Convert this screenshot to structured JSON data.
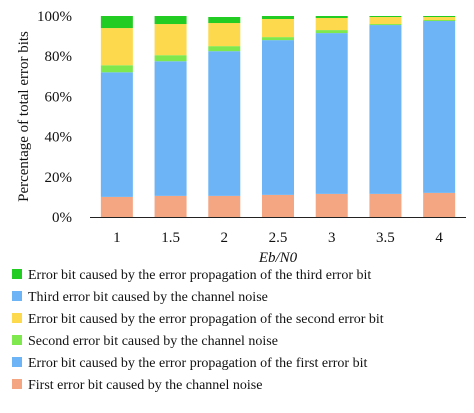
{
  "chart_data": {
    "type": "bar",
    "stacked": true,
    "title": "",
    "xlabel": "Eb/N0",
    "ylabel": "Percentage of total error bits",
    "categories": [
      "1",
      "1.5",
      "2",
      "2.5",
      "3",
      "3.5",
      "4"
    ],
    "ylim": [
      0,
      100
    ],
    "yticks": [
      "0%",
      "20%",
      "40%",
      "60%",
      "80%",
      "100%"
    ],
    "grid": false,
    "legend_position": "bottom",
    "series": [
      {
        "name": "First error bit caused by the channel noise",
        "color": "#f4a582",
        "values": [
          10,
          10.5,
          10.5,
          11,
          11.5,
          11.5,
          12
        ]
      },
      {
        "name": "Error bit caused by the error propagation of the first error bit",
        "color": "#6cb4f5",
        "values": [
          62,
          67,
          72,
          77,
          80,
          84,
          85.5
        ]
      },
      {
        "name": "Second error bit caused by the channel noise",
        "color": "#7ee84e",
        "values": [
          3.5,
          3,
          2.5,
          1.5,
          1.5,
          0.5,
          0.5
        ]
      },
      {
        "name": "Error bit caused by the error propagation of the second error bit",
        "color": "#fdd94e",
        "values": [
          18.5,
          15.5,
          11.5,
          9,
          6,
          3.5,
          1.5
        ]
      },
      {
        "name": "Third error bit caused by the channel noise",
        "color": "#6cb4f5",
        "values": [
          0,
          0,
          0,
          0,
          0,
          0,
          0
        ]
      },
      {
        "name": "Error bit caused by the error propagation of the third error bit",
        "color": "#22cc22",
        "values": [
          6,
          4,
          3,
          1.5,
          1,
          0.5,
          0.5
        ]
      }
    ],
    "legend_order": [
      5,
      4,
      3,
      2,
      1,
      0
    ]
  }
}
